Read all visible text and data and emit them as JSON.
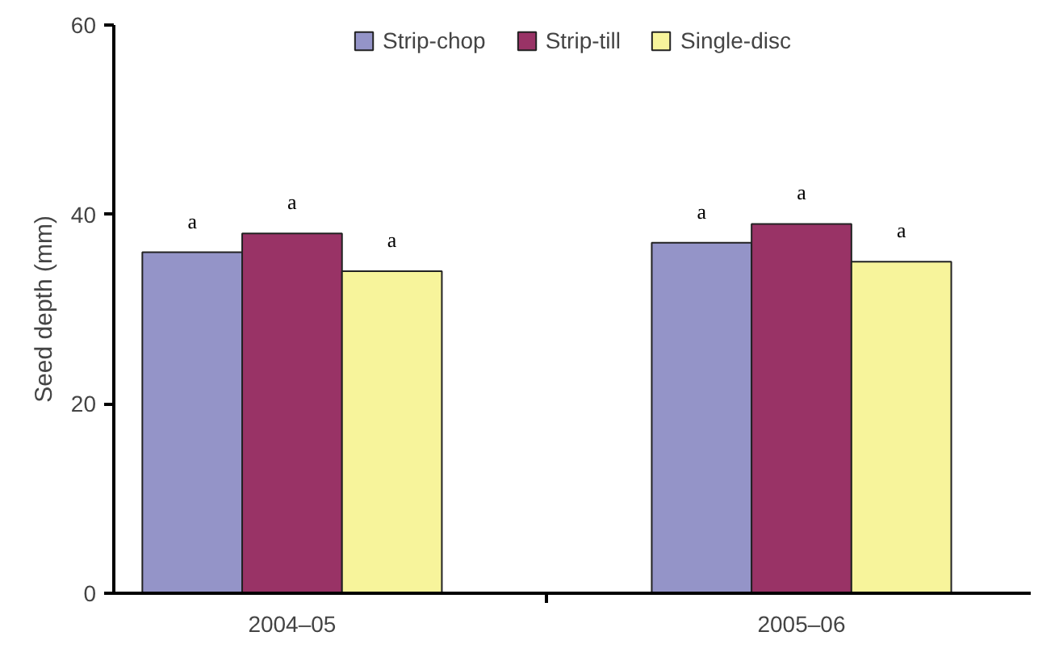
{
  "chart_data": {
    "type": "bar",
    "ylabel": "Seed depth (mm)",
    "categories": [
      "2004–05",
      "2005–06"
    ],
    "series": [
      {
        "name": "Strip-chop",
        "color": "#9494c8",
        "values": [
          36,
          37
        ],
        "value_labels": [
          "a",
          "a"
        ]
      },
      {
        "name": "Strip-till",
        "color": "#993366",
        "values": [
          38,
          39
        ],
        "value_labels": [
          "a",
          "a"
        ]
      },
      {
        "name": "Single-disc",
        "color": "#f7f49b",
        "values": [
          34,
          35
        ],
        "value_labels": [
          "a",
          "a"
        ]
      }
    ],
    "ylim": [
      0,
      60
    ],
    "yticks": [
      0,
      20,
      40,
      60
    ],
    "legend": "top",
    "grid": false
  }
}
